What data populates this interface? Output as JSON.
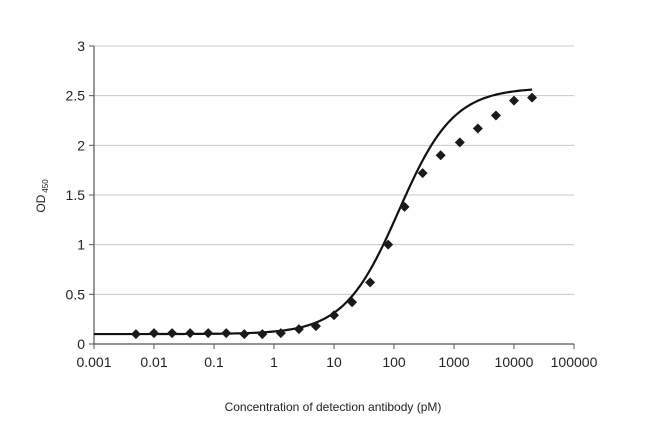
{
  "chart_data": {
    "type": "scatter",
    "title": "",
    "xlabel": "Concentration of detection antibody (pM)",
    "ylabel": {
      "main": "OD",
      "subscript": "450"
    },
    "x_scale": "log",
    "xlim": [
      0.001,
      100000
    ],
    "ylim": [
      0,
      3
    ],
    "x_ticks": [
      0.001,
      0.01,
      0.1,
      1,
      10,
      100,
      1000,
      10000,
      100000
    ],
    "x_tick_labels": [
      "0.001",
      "0.01",
      "0.1",
      "1",
      "10",
      "100",
      "1000",
      "10000",
      "100000"
    ],
    "y_ticks": [
      0,
      0.5,
      1,
      1.5,
      2,
      2.5,
      3
    ],
    "y_tick_labels": [
      "0",
      "0.5",
      "1",
      "1.5",
      "2",
      "2.5",
      "3"
    ],
    "grid": "horizontal",
    "legend": "none",
    "marker_color": "#1a1a1a",
    "curve_color": "#111111",
    "grid_color": "#c8c8c8",
    "series": [
      {
        "marker": "diamond",
        "x": [
          0.005,
          0.01,
          0.02,
          0.04,
          0.08,
          0.16,
          0.32,
          0.64,
          1.3,
          2.6,
          5,
          10,
          20,
          40,
          80,
          150,
          300,
          600,
          1250,
          2500,
          5000,
          10000,
          20000
        ],
        "y": [
          0.1,
          0.11,
          0.11,
          0.11,
          0.11,
          0.11,
          0.1,
          0.1,
          0.11,
          0.15,
          0.18,
          0.29,
          0.42,
          0.62,
          1.0,
          1.38,
          1.72,
          1.9,
          2.03,
          2.17,
          2.3,
          2.45,
          2.48
        ]
      }
    ],
    "fit_curve": {
      "model": "4PL",
      "bottom": 0.1,
      "top": 2.58,
      "ec50": 120,
      "hill": 0.95
    }
  }
}
